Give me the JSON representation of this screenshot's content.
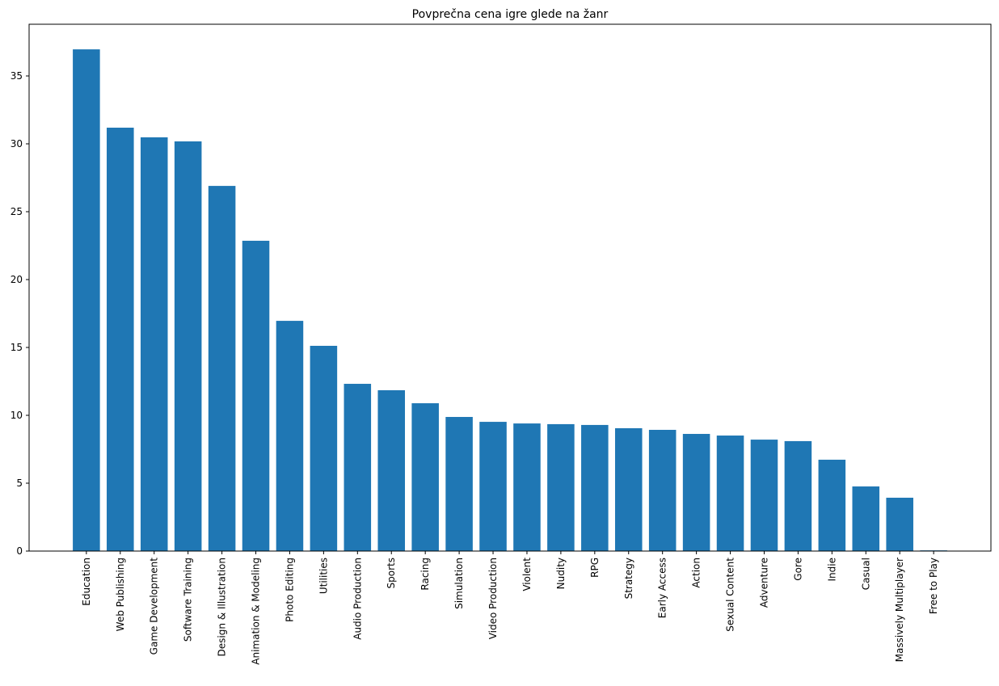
{
  "chart_data": {
    "type": "bar",
    "title": "Povprečna cena igre glede na žanr",
    "categories": [
      "Education",
      "Web Publishing",
      "Game Development",
      "Software Training",
      "Design & Illustration",
      "Animation & Modeling",
      "Photo Editing",
      "Utilities",
      "Audio Production",
      "Sports",
      "Racing",
      "Simulation",
      "Video Production",
      "Violent",
      "Nudity",
      "RPG",
      "Strategy",
      "Early Access",
      "Action",
      "Sexual Content",
      "Adventure",
      "Gore",
      "Indie",
      "Casual",
      "Massively Multiplayer",
      "Free to Play"
    ],
    "values": [
      36.96,
      31.19,
      30.48,
      30.18,
      26.9,
      22.86,
      16.96,
      15.12,
      12.32,
      11.85,
      10.89,
      9.88,
      9.52,
      9.4,
      9.35,
      9.29,
      9.05,
      8.93,
      8.63,
      8.51,
      8.21,
      8.1,
      6.73,
      4.76,
      3.93,
      0.05
    ],
    "color": "#1f77b4",
    "ylim": [
      0,
      38.81
    ],
    "yticks": [
      0,
      5,
      10,
      15,
      20,
      25,
      30,
      35
    ]
  }
}
